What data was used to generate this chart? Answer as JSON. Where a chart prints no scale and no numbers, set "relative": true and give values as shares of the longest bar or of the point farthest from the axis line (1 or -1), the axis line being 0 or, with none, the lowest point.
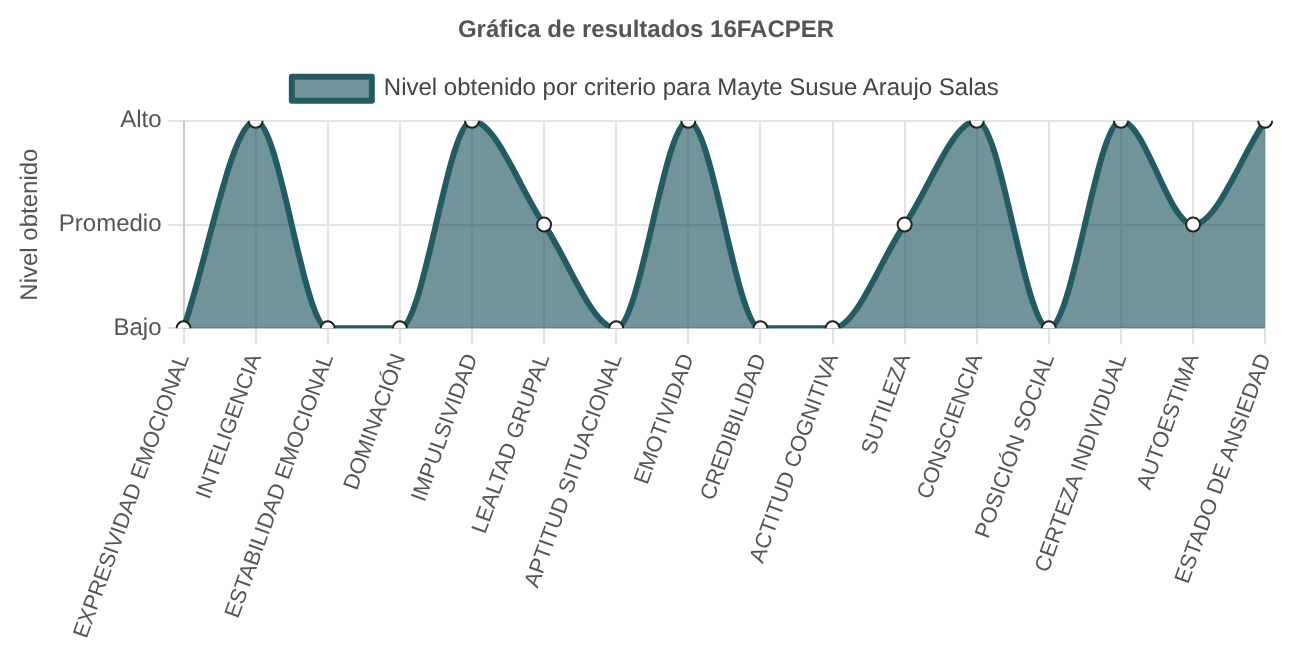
{
  "chart_data": {
    "type": "area",
    "title": "Gráfica de resultados 16FACPER",
    "ylabel": "Nivel obtenido",
    "categories": [
      "EXPRESIVIDAD EMOCIONAL",
      "INTELIGENCIA",
      "ESTABILIDAD EMOCIONAL",
      "DOMINACIÓN",
      "IMPULSIVIDAD",
      "LEALTAD GRUPAL",
      "APTITUD SITUACIONAL",
      "EMOTIVIDAD",
      "CREDIBILIDAD",
      "ACTITUD COGNITIVA",
      "SUTILEZA",
      "CONSCIENCIA",
      "POSICIÓN SOCIAL",
      "CERTEZA INDIVIDUAL",
      "AUTOESTIMA",
      "ESTADO DE ANSIEDAD"
    ],
    "series": [
      {
        "name": "Nivel obtenido por criterio para Mayte Susue Araujo Salas",
        "color": "#245b63",
        "values": [
          0,
          1,
          0,
          0,
          1,
          0.5,
          0,
          1,
          0,
          0,
          0.5,
          1,
          0,
          1,
          0.5,
          1
        ]
      }
    ],
    "relative": true,
    "ref_lines": [
      {
        "axis": "y",
        "value": 0,
        "label": "Bajo"
      },
      {
        "axis": "y",
        "value": 0.5,
        "label": "Promedio"
      },
      {
        "axis": "y",
        "value": 1,
        "label": "Alto"
      }
    ],
    "grid": "x",
    "legend": "top",
    "marker": "circle",
    "line_style": "solid"
  }
}
